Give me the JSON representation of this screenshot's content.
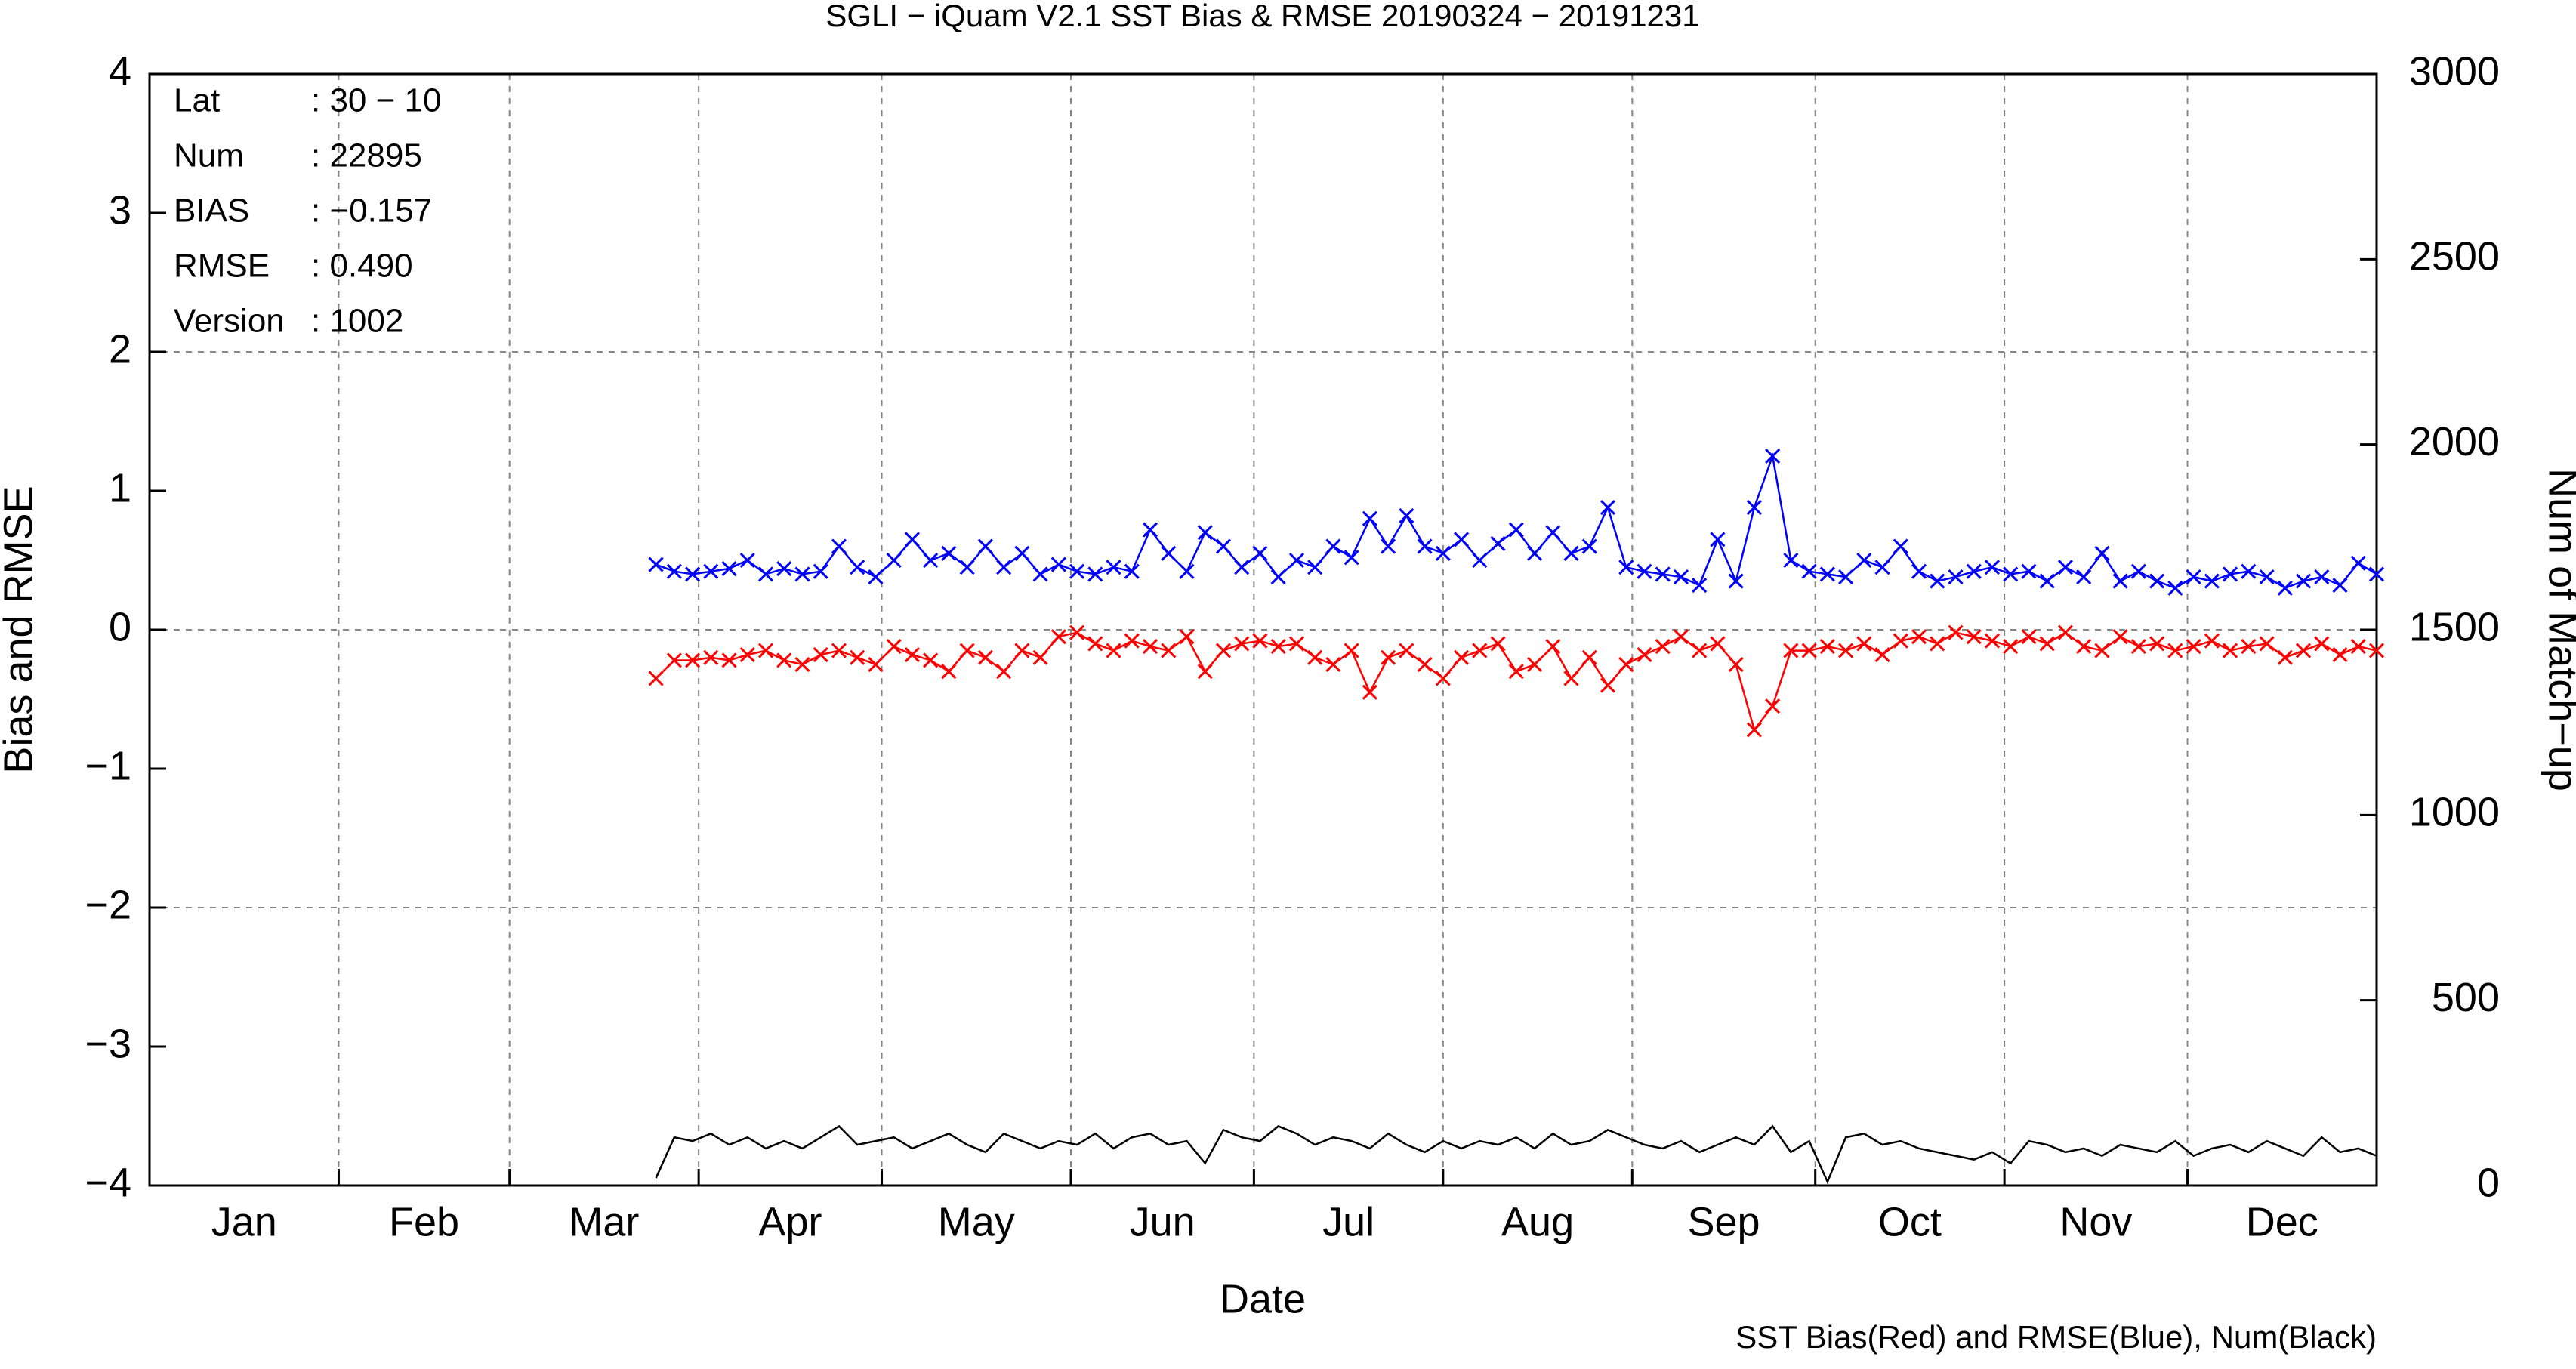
{
  "chart_data": {
    "type": "line",
    "title": "SGLI − iQuam V2.1 SST Bias & RMSE 20190324 − 20191231",
    "x_label": "Date",
    "y_label": "Bias and RMSE",
    "y2_label": "Num of Match−up",
    "footnote": "SST Bias(Red) and RMSE(Blue), Num(Black)",
    "info": [
      {
        "key": "Lat",
        "value": ": 30 − 10"
      },
      {
        "key": "Num",
        "value": ": 22895"
      },
      {
        "key": "BIAS",
        "value": ": −0.157"
      },
      {
        "key": "RMSE",
        "value": ": 0.490"
      },
      {
        "key": "Version",
        "value": ": 1002"
      }
    ],
    "xlim": [
      0,
      365
    ],
    "xgrid": [
      31,
      59,
      90,
      120,
      151,
      181,
      212,
      243,
      273,
      304,
      334
    ],
    "xticks": [
      {
        "value": 15.5,
        "label": "Jan"
      },
      {
        "value": 45,
        "label": "Feb"
      },
      {
        "value": 74.5,
        "label": "Mar"
      },
      {
        "value": 105,
        "label": "Apr"
      },
      {
        "value": 135.5,
        "label": "May"
      },
      {
        "value": 166,
        "label": "Jun"
      },
      {
        "value": 196.5,
        "label": "Jul"
      },
      {
        "value": 227.5,
        "label": "Aug"
      },
      {
        "value": 258,
        "label": "Sep"
      },
      {
        "value": 288.5,
        "label": "Oct"
      },
      {
        "value": 319,
        "label": "Nov"
      },
      {
        "value": 349.5,
        "label": "Dec"
      }
    ],
    "ylim": [
      -4,
      4
    ],
    "yticks": [
      {
        "value": -4,
        "label": "−4"
      },
      {
        "value": -3,
        "label": "−3"
      },
      {
        "value": -2,
        "label": "−2"
      },
      {
        "value": -1,
        "label": "−1"
      },
      0,
      1,
      2,
      3,
      4
    ],
    "ygrid": [
      -2,
      0,
      2
    ],
    "y2lim": [
      0,
      3000
    ],
    "y2ticks": [
      0,
      500,
      1000,
      1500,
      2000,
      2500,
      3000
    ],
    "grid": true,
    "x": [
      83,
      86,
      89,
      92,
      95,
      98,
      101,
      104,
      107,
      110,
      113,
      116,
      119,
      122,
      125,
      128,
      131,
      134,
      137,
      140,
      143,
      146,
      149,
      152,
      155,
      158,
      161,
      164,
      167,
      170,
      173,
      176,
      179,
      182,
      185,
      188,
      191,
      194,
      197,
      200,
      203,
      206,
      209,
      212,
      215,
      218,
      221,
      224,
      227,
      230,
      233,
      236,
      239,
      242,
      245,
      248,
      251,
      254,
      257,
      260,
      263,
      266,
      269,
      272,
      275,
      278,
      281,
      284,
      287,
      290,
      293,
      296,
      299,
      302,
      305,
      308,
      311,
      314,
      317,
      320,
      323,
      326,
      329,
      332,
      335,
      338,
      341,
      344,
      347,
      350,
      353,
      356,
      359,
      362,
      365
    ],
    "series": [
      {
        "color": "#0000ff",
        "marker": "x",
        "values": [
          0.47,
          0.42,
          0.4,
          0.42,
          0.44,
          0.5,
          0.4,
          0.44,
          0.4,
          0.42,
          0.6,
          0.45,
          0.38,
          0.5,
          0.65,
          0.5,
          0.55,
          0.45,
          0.6,
          0.45,
          0.55,
          0.4,
          0.47,
          0.42,
          0.4,
          0.45,
          0.42,
          0.72,
          0.55,
          0.42,
          0.7,
          0.6,
          0.45,
          0.55,
          0.38,
          0.5,
          0.45,
          0.6,
          0.52,
          0.8,
          0.6,
          0.82,
          0.6,
          0.55,
          0.65,
          0.5,
          0.62,
          0.72,
          0.55,
          0.7,
          0.55,
          0.6,
          0.88,
          0.45,
          0.42,
          0.4,
          0.38,
          0.32,
          0.65,
          0.35,
          0.88,
          1.25,
          0.5,
          0.42,
          0.4,
          0.38,
          0.5,
          0.45,
          0.6,
          0.42,
          0.35,
          0.38,
          0.42,
          0.45,
          0.4,
          0.42,
          0.35,
          0.45,
          0.38,
          0.55,
          0.35,
          0.42,
          0.35,
          0.3,
          0.38,
          0.35,
          0.4,
          0.42,
          0.38,
          0.3,
          0.35,
          0.38,
          0.32,
          0.48,
          0.4
        ]
      },
      {
        "color": "#ff0000",
        "marker": "x",
        "values": [
          -0.35,
          -0.22,
          -0.22,
          -0.2,
          -0.22,
          -0.18,
          -0.15,
          -0.22,
          -0.25,
          -0.18,
          -0.15,
          -0.2,
          -0.25,
          -0.12,
          -0.18,
          -0.22,
          -0.3,
          -0.15,
          -0.2,
          -0.3,
          -0.15,
          -0.2,
          -0.05,
          -0.02,
          -0.1,
          -0.15,
          -0.08,
          -0.12,
          -0.15,
          -0.05,
          -0.3,
          -0.15,
          -0.1,
          -0.08,
          -0.12,
          -0.1,
          -0.2,
          -0.25,
          -0.15,
          -0.45,
          -0.2,
          -0.15,
          -0.25,
          -0.35,
          -0.2,
          -0.15,
          -0.1,
          -0.3,
          -0.25,
          -0.12,
          -0.35,
          -0.2,
          -0.4,
          -0.25,
          -0.18,
          -0.12,
          -0.05,
          -0.15,
          -0.1,
          -0.25,
          -0.72,
          -0.55,
          -0.15,
          -0.15,
          -0.12,
          -0.15,
          -0.1,
          -0.18,
          -0.08,
          -0.05,
          -0.1,
          -0.02,
          -0.05,
          -0.08,
          -0.12,
          -0.05,
          -0.1,
          -0.02,
          -0.12,
          -0.15,
          -0.05,
          -0.12,
          -0.1,
          -0.15,
          -0.12,
          -0.08,
          -0.15,
          -0.12,
          -0.1,
          -0.2,
          -0.15,
          -0.1,
          -0.18,
          -0.12,
          -0.15
        ]
      },
      {
        "color": "#000000",
        "axis": "y2",
        "values": [
          20,
          130,
          120,
          140,
          110,
          130,
          100,
          120,
          100,
          130,
          160,
          110,
          120,
          130,
          100,
          120,
          140,
          110,
          90,
          140,
          120,
          100,
          120,
          110,
          140,
          100,
          130,
          140,
          110,
          120,
          60,
          150,
          130,
          120,
          160,
          140,
          110,
          130,
          120,
          100,
          140,
          110,
          90,
          120,
          100,
          120,
          110,
          130,
          100,
          140,
          110,
          120,
          150,
          130,
          110,
          100,
          120,
          90,
          110,
          130,
          110,
          160,
          90,
          120,
          10,
          130,
          140,
          110,
          120,
          100,
          90,
          80,
          70,
          90,
          60,
          120,
          110,
          90,
          100,
          80,
          110,
          100,
          90,
          120,
          80,
          100,
          110,
          90,
          120,
          100,
          80,
          130,
          90,
          100,
          80
        ]
      }
    ]
  }
}
